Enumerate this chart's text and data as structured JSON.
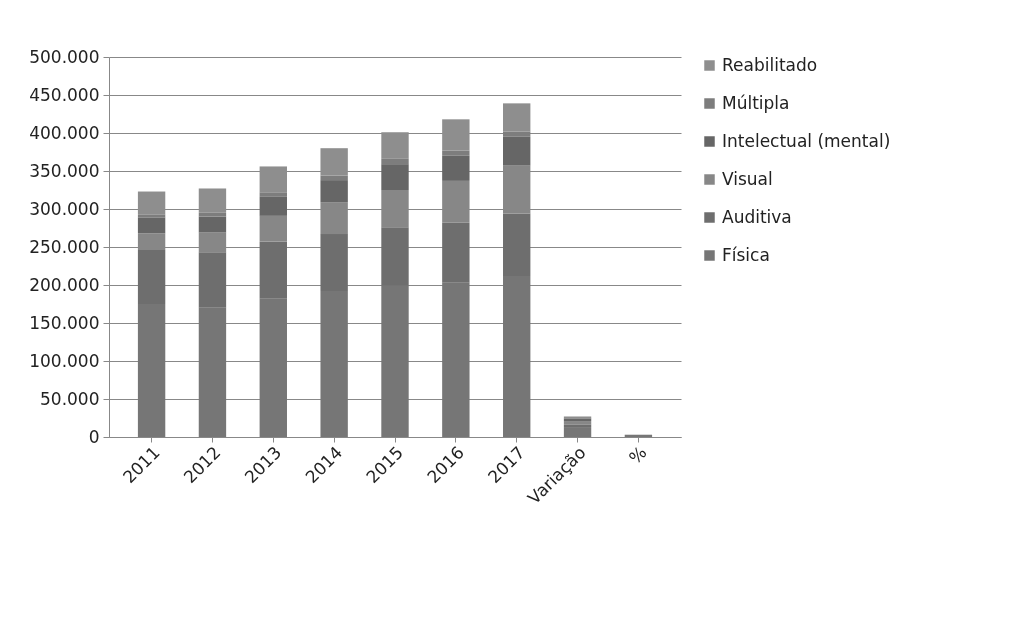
{
  "chart_data": {
    "type": "bar",
    "stacked": true,
    "categories": [
      "2011",
      "2012",
      "2013",
      "2014",
      "2015",
      "2016",
      "2017",
      "Variação",
      "%"
    ],
    "series": [
      {
        "name": "Física",
        "color": "#767676",
        "values": [
          175000,
          170000,
          182000,
          192000,
          199000,
          203000,
          212000,
          12000,
          3000
        ]
      },
      {
        "name": "Auditiva",
        "color": "#6e6e6e",
        "values": [
          71000,
          73000,
          75000,
          75000,
          77000,
          79000,
          82000,
          4000,
          null
        ]
      },
      {
        "name": "Visual",
        "color": "#878787",
        "values": [
          22000,
          26000,
          34000,
          42000,
          49000,
          55000,
          63000,
          5000,
          null
        ]
      },
      {
        "name": "Intelectual (mental)",
        "color": "#666666",
        "values": [
          21000,
          21000,
          25000,
          29000,
          34000,
          33000,
          38000,
          3000,
          null
        ]
      },
      {
        "name": "Múltipla",
        "color": "#7d7d7d",
        "values": [
          4000,
          5000,
          6000,
          6000,
          7000,
          7000,
          7000,
          1000,
          null
        ]
      },
      {
        "name": "Reabilitado",
        "color": "#8e8e8e",
        "values": [
          30000,
          32000,
          34000,
          36000,
          35000,
          41000,
          37000,
          2000,
          null
        ]
      }
    ],
    "ylim": [
      0,
      500000
    ],
    "yticks": [
      {
        "value": 0,
        "label": "0"
      },
      {
        "value": 50000,
        "label": "50.000"
      },
      {
        "value": 100000,
        "label": "100.000"
      },
      {
        "value": 150000,
        "label": "150.000"
      },
      {
        "value": 200000,
        "label": "200.000"
      },
      {
        "value": 250000,
        "label": "250.000"
      },
      {
        "value": 300000,
        "label": "300.000"
      },
      {
        "value": 350000,
        "label": "350.000"
      },
      {
        "value": 400000,
        "label": "400.000"
      },
      {
        "value": 450000,
        "label": "450.000"
      },
      {
        "value": 500000,
        "label": "500.000"
      }
    ],
    "grid": "y",
    "legend": "right"
  }
}
